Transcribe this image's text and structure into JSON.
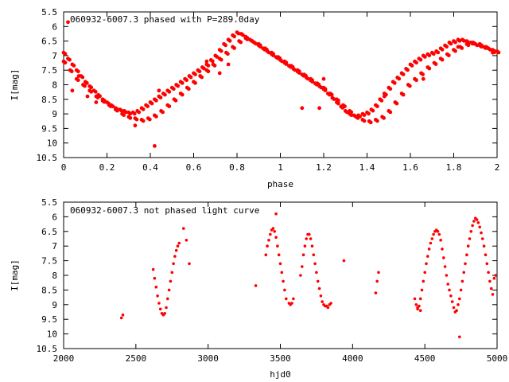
{
  "chart_data": [
    {
      "type": "scatter",
      "title": "060932-6007.3 phased with P=289.0day",
      "xlabel": "phase",
      "ylabel": "I[mag]",
      "xlim": [
        0,
        2
      ],
      "ylim": [
        5.5,
        10.5
      ],
      "y_inverted": true,
      "grid": false,
      "x_ticks": [
        "0",
        "0.2",
        "0.4",
        "0.6",
        "0.8",
        "1",
        "1.2",
        "1.4",
        "1.6",
        "1.8",
        "2"
      ],
      "y_ticks": [
        "5.5",
        "6",
        "6.5",
        "7",
        "7.5",
        "8",
        "8.5",
        "9",
        "9.5",
        "10",
        "10.5"
      ],
      "marker_color": "#ff0000",
      "series": [
        {
          "x": [
            0.0,
            0.02,
            0.04,
            0.06,
            0.08,
            0.1,
            0.12,
            0.14,
            0.16,
            0.18,
            0.2,
            0.22,
            0.24,
            0.26,
            0.28,
            0.3,
            0.32,
            0.34,
            0.36,
            0.38,
            0.4,
            0.42,
            0.44,
            0.46,
            0.48,
            0.5,
            0.52,
            0.54,
            0.56,
            0.58,
            0.6,
            0.62,
            0.64,
            0.66,
            0.68,
            0.7,
            0.72,
            0.74,
            0.76,
            0.78,
            0.8,
            0.82,
            0.84,
            0.86,
            0.88,
            0.9,
            0.92,
            0.94,
            0.96,
            0.98,
            1.0,
            1.02,
            1.04,
            1.06,
            1.08,
            1.1,
            1.12,
            1.14,
            1.16,
            1.18,
            1.2,
            1.22,
            1.24,
            1.26,
            1.28,
            1.3,
            1.32,
            1.34,
            1.36,
            1.38,
            1.4,
            1.42,
            1.44,
            1.46,
            1.48,
            1.5,
            1.52,
            1.54,
            1.56,
            1.58,
            1.6,
            1.62,
            1.64,
            1.66,
            1.68,
            1.7,
            1.72,
            1.74,
            1.76,
            1.78,
            1.8,
            1.82,
            1.84,
            1.86,
            1.88,
            1.9,
            1.92,
            1.94,
            1.96,
            1.98,
            2.0
          ],
          "y": [
            6.9,
            7.1,
            7.3,
            7.5,
            7.7,
            7.9,
            8.05,
            8.2,
            8.35,
            8.5,
            8.6,
            8.7,
            8.8,
            8.85,
            8.9,
            8.95,
            8.95,
            8.9,
            8.8,
            8.7,
            8.6,
            8.5,
            8.4,
            8.3,
            8.2,
            8.1,
            8.0,
            7.9,
            7.8,
            7.7,
            7.6,
            7.5,
            7.4,
            7.3,
            7.15,
            7.0,
            6.8,
            6.6,
            6.45,
            6.3,
            6.2,
            6.25,
            6.35,
            6.45,
            6.55,
            6.65,
            6.75,
            6.85,
            6.95,
            7.05,
            7.15,
            7.25,
            7.35,
            7.45,
            7.55,
            7.65,
            7.75,
            7.85,
            7.95,
            8.05,
            8.15,
            8.3,
            8.45,
            8.6,
            8.75,
            8.9,
            9.0,
            9.05,
            9.05,
            9.0,
            8.95,
            8.85,
            8.7,
            8.5,
            8.3,
            8.1,
            7.9,
            7.75,
            7.6,
            7.45,
            7.3,
            7.2,
            7.1,
            7.0,
            6.95,
            6.9,
            6.85,
            6.75,
            6.65,
            6.55,
            6.5,
            6.45,
            6.45,
            6.5,
            6.55,
            6.6,
            6.65,
            6.7,
            6.75,
            6.8,
            6.85
          ]
        },
        {
          "x": [
            0.0,
            0.03,
            0.06,
            0.09,
            0.12,
            0.15,
            0.18,
            0.21,
            0.24,
            0.27,
            0.3,
            0.33,
            0.36,
            0.39,
            0.42,
            0.45,
            0.48,
            0.51,
            0.54,
            0.57,
            0.6,
            0.63,
            0.66,
            0.69,
            0.72,
            0.75,
            0.78,
            0.81,
            0.84,
            0.87,
            0.9,
            0.93,
            0.96,
            0.99,
            1.02,
            1.05,
            1.08,
            1.11,
            1.14,
            1.17,
            1.2,
            1.23,
            1.26,
            1.29,
            1.32,
            1.35,
            1.38,
            1.41,
            1.44,
            1.47,
            1.5,
            1.53,
            1.56,
            1.59,
            1.62,
            1.65,
            1.68,
            1.71,
            1.74,
            1.77,
            1.8,
            1.83,
            1.86,
            1.89,
            1.92,
            1.95,
            1.98
          ],
          "y": [
            7.2,
            7.5,
            7.8,
            8.0,
            8.2,
            8.4,
            8.55,
            8.7,
            8.85,
            9.0,
            9.1,
            9.15,
            9.2,
            9.15,
            9.05,
            8.9,
            8.7,
            8.5,
            8.3,
            8.1,
            7.9,
            7.7,
            7.5,
            7.3,
            7.1,
            6.9,
            6.7,
            6.5,
            6.4,
            6.5,
            6.6,
            6.75,
            6.9,
            7.05,
            7.2,
            7.35,
            7.5,
            7.65,
            7.8,
            7.95,
            8.1,
            8.3,
            8.5,
            8.7,
            8.9,
            9.1,
            9.2,
            9.25,
            9.2,
            9.1,
            8.9,
            8.6,
            8.3,
            8.0,
            7.8,
            7.6,
            7.4,
            7.25,
            7.1,
            6.95,
            6.8,
            6.7,
            6.6,
            6.55,
            6.6,
            6.7,
            6.85
          ]
        },
        {
          "x": [
            0.02,
            0.04,
            0.07,
            0.11,
            0.15,
            0.33,
            0.42,
            0.44,
            0.66,
            0.72,
            0.76,
            1.1,
            1.18,
            1.2,
            1.48,
            1.66,
            1.82,
            1.98
          ],
          "y": [
            5.85,
            8.2,
            7.7,
            8.4,
            8.6,
            9.4,
            10.1,
            8.2,
            7.2,
            7.6,
            7.3,
            8.8,
            8.8,
            7.8,
            8.4,
            7.8,
            6.7,
            6.9
          ]
        }
      ]
    },
    {
      "type": "scatter",
      "title": "060932-6007.3 not phased light curve",
      "xlabel": "hjd0",
      "ylabel": "I[mag]",
      "xlim": [
        2000,
        5000
      ],
      "ylim": [
        5.5,
        10.5
      ],
      "y_inverted": true,
      "grid": false,
      "x_ticks": [
        "2000",
        "2500",
        "3000",
        "3500",
        "4000",
        "4500",
        "5000"
      ],
      "y_ticks": [
        "5.5",
        "6",
        "6.5",
        "7",
        "7.5",
        "8",
        "8.5",
        "9",
        "9.5",
        "10",
        "10.5"
      ],
      "marker_color": "#ff0000",
      "series": [
        {
          "x": [
            2400,
            2410,
            2620,
            2630,
            2640,
            2650,
            2660,
            2670,
            2680,
            2690,
            2700,
            2710,
            2720,
            2730,
            2740,
            2750,
            2760,
            2770,
            2780,
            2790,
            2800,
            2830,
            2850,
            2870,
            3330,
            3400,
            3410,
            3420,
            3430,
            3440,
            3450,
            3460,
            3470,
            3480,
            3490,
            3500,
            3510,
            3520,
            3530,
            3540,
            3560,
            3570,
            3580,
            3590,
            3640,
            3650,
            3660,
            3670,
            3680,
            3690,
            3700,
            3710,
            3720,
            3730,
            3740,
            3750,
            3760,
            3770,
            3780,
            3790,
            3800,
            3810,
            3820,
            3830,
            3840,
            3850,
            3940,
            4160,
            4170,
            4180,
            4430,
            4440,
            4450,
            4460,
            4470,
            4480,
            4490,
            4500,
            4510,
            4520,
            4530,
            4540,
            4550,
            4560,
            4570,
            4580,
            4590,
            4600,
            4610,
            4620,
            4630,
            4640,
            4650,
            4660,
            4670,
            4680,
            4690,
            4700,
            4710,
            4720,
            4730,
            4740,
            4750,
            4760,
            4770,
            4780,
            4790,
            4800,
            4810,
            4820,
            4830,
            4840,
            4850,
            4860,
            4870,
            4880,
            4890,
            4900,
            4910,
            4920,
            4930,
            4940,
            4950,
            4960,
            4970,
            4980,
            4990
          ],
          "y": [
            9.45,
            9.35,
            7.8,
            8.1,
            8.4,
            8.7,
            8.95,
            9.15,
            9.3,
            9.35,
            9.3,
            9.1,
            8.8,
            8.5,
            8.2,
            7.9,
            7.6,
            7.35,
            7.15,
            7.0,
            6.9,
            6.4,
            6.8,
            7.6,
            8.35,
            7.3,
            7.0,
            6.8,
            6.6,
            6.45,
            6.4,
            6.5,
            6.7,
            7.0,
            7.3,
            7.6,
            7.9,
            8.2,
            8.5,
            8.8,
            8.95,
            9.0,
            8.95,
            8.8,
            8.0,
            7.7,
            7.3,
            7.0,
            6.75,
            6.6,
            6.6,
            6.75,
            7.0,
            7.3,
            7.6,
            7.9,
            8.2,
            8.45,
            8.7,
            8.9,
            9.0,
            9.05,
            9.05,
            9.1,
            9.0,
            8.95,
            7.5,
            8.6,
            8.2,
            7.9,
            8.8,
            9.0,
            9.1,
            9.05,
            8.8,
            8.5,
            8.2,
            7.9,
            7.6,
            7.35,
            7.1,
            6.9,
            6.75,
            6.6,
            6.5,
            6.45,
            6.5,
            6.6,
            6.8,
            7.1,
            7.4,
            7.7,
            8.0,
            8.3,
            8.5,
            8.7,
            8.9,
            9.1,
            9.25,
            9.2,
            9.0,
            8.8,
            8.5,
            8.2,
            7.9,
            7.6,
            7.3,
            7.0,
            6.75,
            6.5,
            6.3,
            6.15,
            6.05,
            6.1,
            6.2,
            6.35,
            6.55,
            6.75,
            7.0,
            7.3,
            7.6,
            7.9,
            8.2,
            8.45,
            8.65,
            8.1,
            8.0
          ]
        },
        {
          "x": [
            3470,
            4740,
            4470,
            4450
          ],
          "y": [
            5.9,
            10.1,
            9.2,
            9.15
          ]
        }
      ]
    }
  ]
}
